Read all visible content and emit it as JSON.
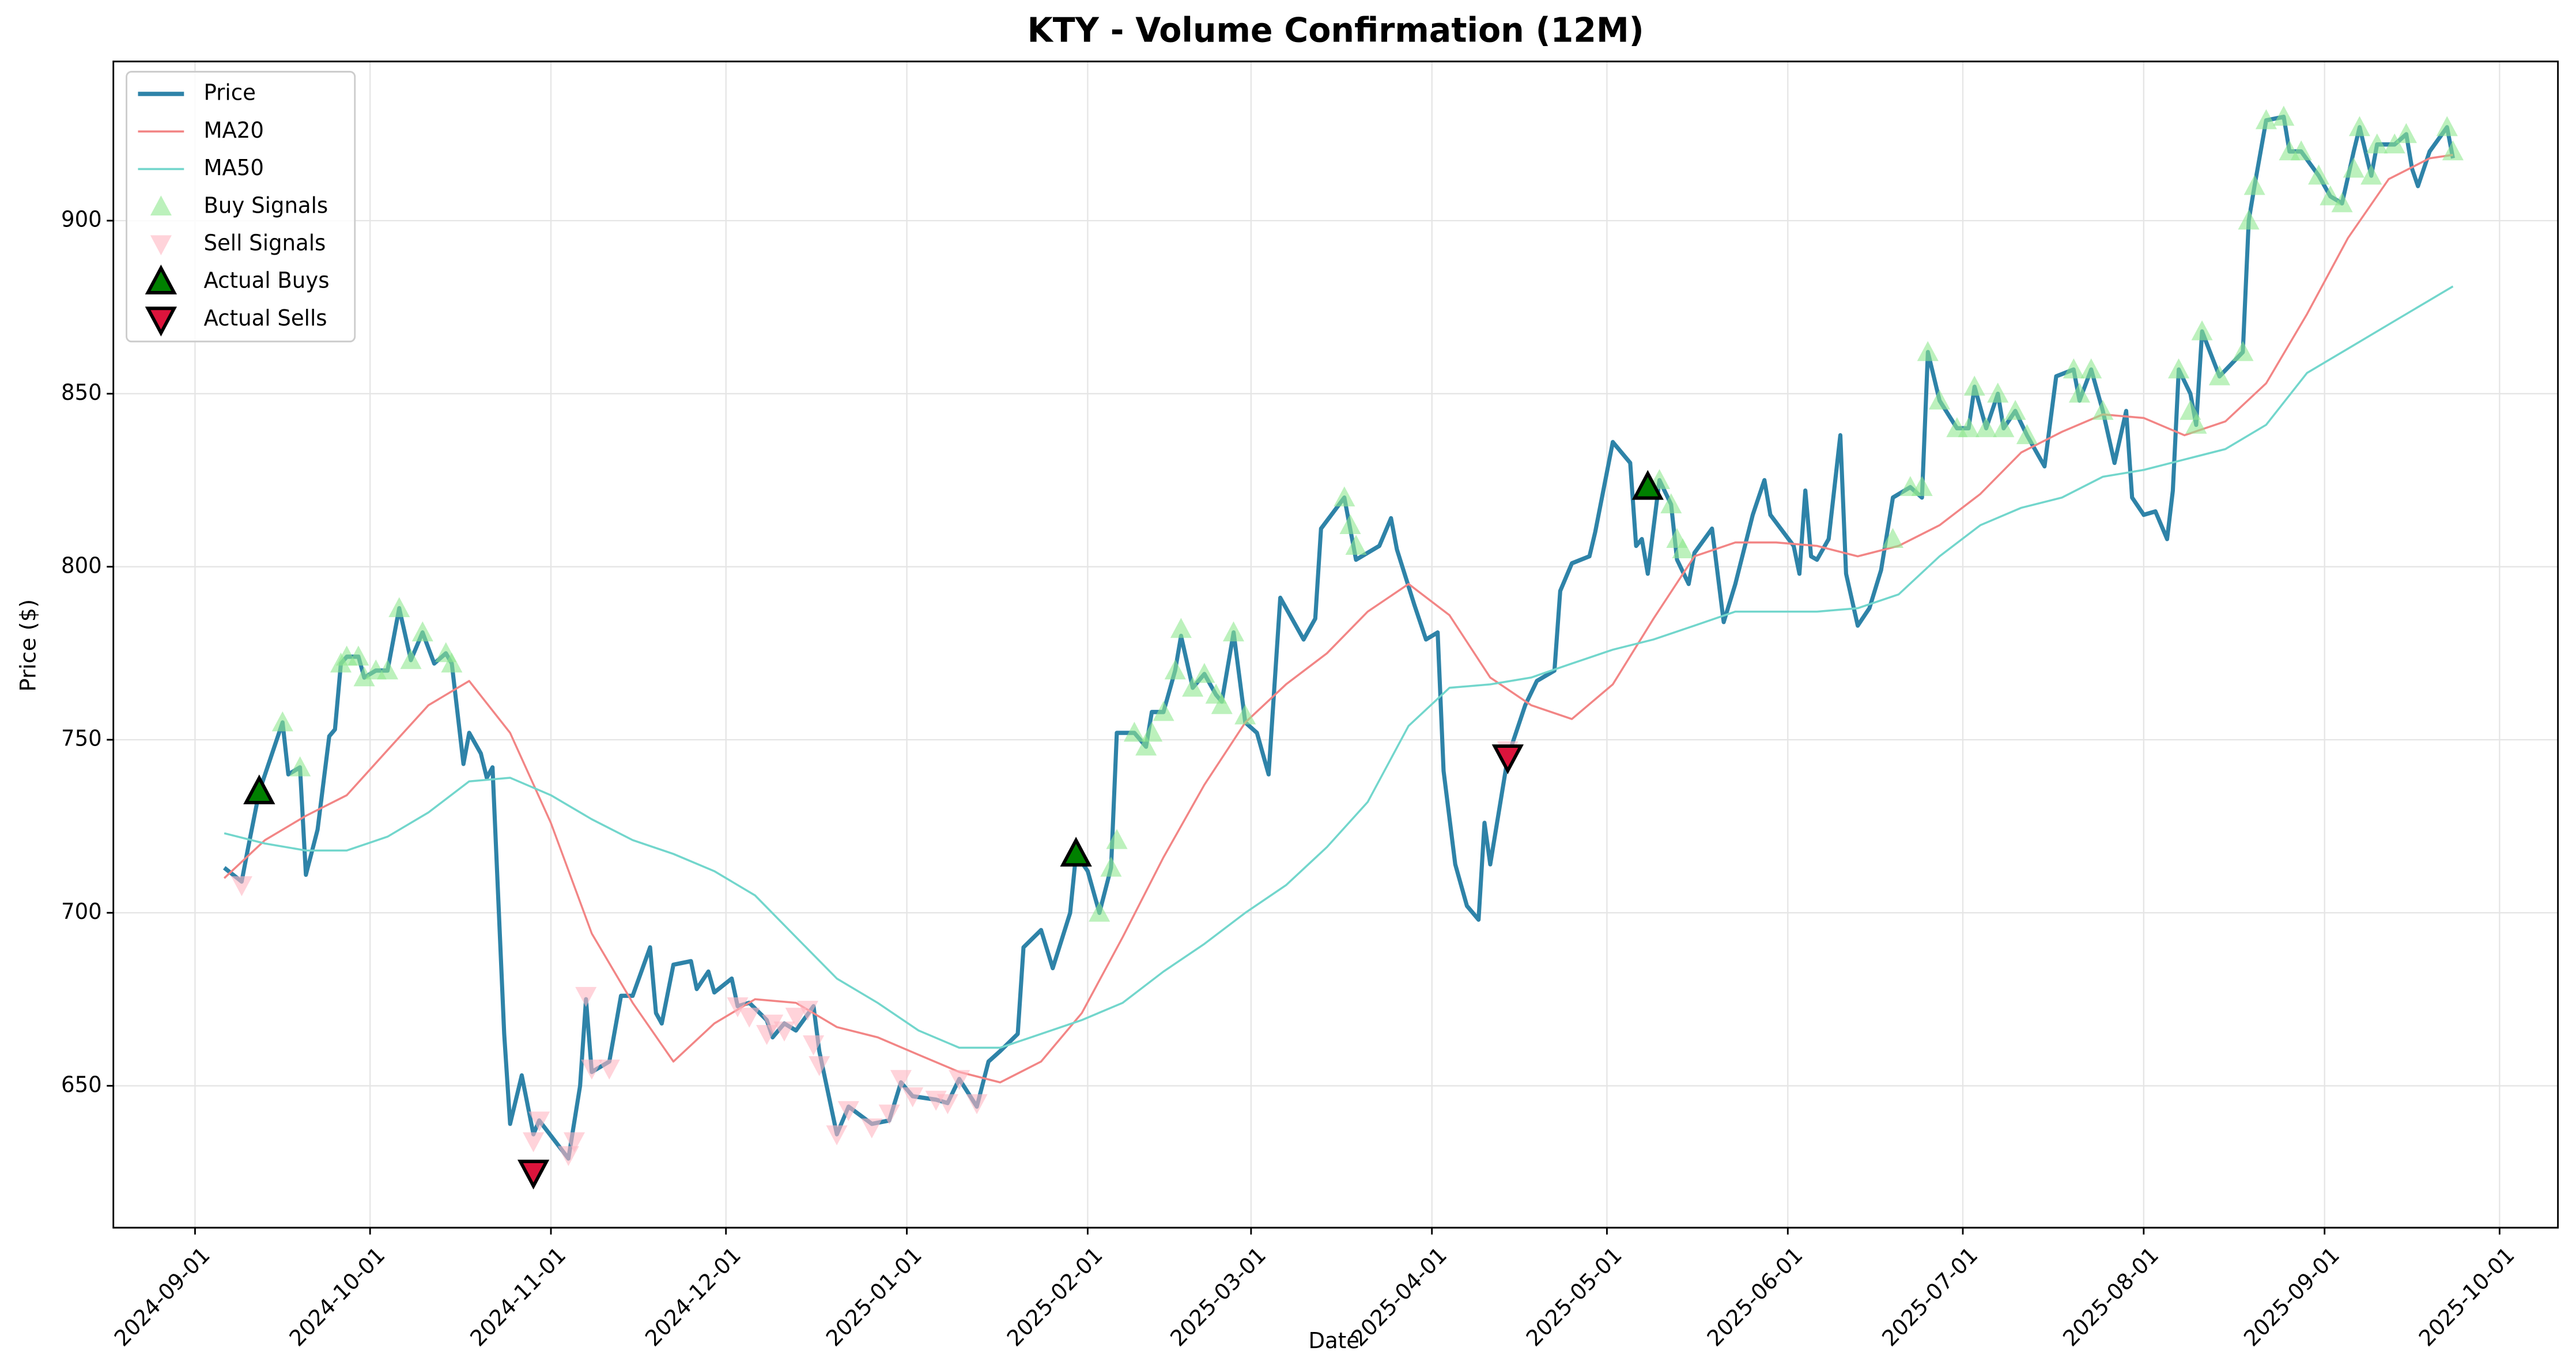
{
  "chart_data": {
    "type": "line",
    "title": "KTY - Volume Confirmation (12M)",
    "xlabel": "Date",
    "ylabel": "Price ($)",
    "xlim": [
      "2024-08-18",
      "2025-10-11"
    ],
    "ylim": [
      609,
      946
    ],
    "xticks": [
      "2024-09-01",
      "2024-10-01",
      "2024-11-01",
      "2024-12-01",
      "2025-01-01",
      "2025-02-01",
      "2025-03-01",
      "2025-04-01",
      "2025-05-01",
      "2025-06-01",
      "2025-07-01",
      "2025-08-01",
      "2025-09-01",
      "2025-10-01"
    ],
    "yticks": [
      650,
      700,
      750,
      800,
      850,
      900
    ],
    "grid": true,
    "legend": "upper left",
    "series": [
      {
        "name": "Price",
        "kind": "line",
        "color": "#2e83a8",
        "width": 2.5,
        "x": [
          "2024-09-06",
          "2024-09-09",
          "2024-09-10",
          "2024-09-12",
          "2024-09-16",
          "2024-09-17",
          "2024-09-19",
          "2024-09-20",
          "2024-09-22",
          "2024-09-24",
          "2024-09-25",
          "2024-09-26",
          "2024-09-27",
          "2024-09-29",
          "2024-09-30",
          "2024-10-02",
          "2024-10-04",
          "2024-10-06",
          "2024-10-08",
          "2024-10-10",
          "2024-10-12",
          "2024-10-14",
          "2024-10-15",
          "2024-10-17",
          "2024-10-18",
          "2024-10-20",
          "2024-10-21",
          "2024-10-22",
          "2024-10-24",
          "2024-10-25",
          "2024-10-27",
          "2024-10-29",
          "2024-10-30",
          "2024-11-04",
          "2024-11-06",
          "2024-11-07",
          "2024-11-08",
          "2024-11-11",
          "2024-11-13",
          "2024-11-15",
          "2024-11-18",
          "2024-11-19",
          "2024-11-20",
          "2024-11-22",
          "2024-11-25",
          "2024-11-26",
          "2024-11-28",
          "2024-11-29",
          "2024-12-02",
          "2024-12-03",
          "2024-12-05",
          "2024-12-08",
          "2024-12-09",
          "2024-12-11",
          "2024-12-13",
          "2024-12-16",
          "2024-12-17",
          "2024-12-20",
          "2024-12-22",
          "2024-12-26",
          "2024-12-29",
          "2024-12-31",
          "2025-01-02",
          "2025-01-06",
          "2025-01-08",
          "2025-01-10",
          "2025-01-13",
          "2025-01-15",
          "2025-01-17",
          "2025-01-20",
          "2025-01-21",
          "2025-01-24",
          "2025-01-26",
          "2025-01-29",
          "2025-01-30",
          "2025-02-01",
          "2025-02-03",
          "2025-02-05",
          "2025-02-06",
          "2025-02-09",
          "2025-02-11",
          "2025-02-12",
          "2025-02-14",
          "2025-02-16",
          "2025-02-17",
          "2025-02-19",
          "2025-02-21",
          "2025-02-23",
          "2025-02-24",
          "2025-02-26",
          "2025-02-28",
          "2025-03-02",
          "2025-03-04",
          "2025-03-06",
          "2025-03-10",
          "2025-03-12",
          "2025-03-13",
          "2025-03-17",
          "2025-03-19",
          "2025-03-23",
          "2025-03-25",
          "2025-03-26",
          "2025-03-29",
          "2025-03-31",
          "2025-04-02",
          "2025-04-03",
          "2025-04-05",
          "2025-04-07",
          "2025-04-09",
          "2025-04-10",
          "2025-04-11",
          "2025-04-14",
          "2025-04-17",
          "2025-04-19",
          "2025-04-22",
          "2025-04-23",
          "2025-04-25",
          "2025-04-28",
          "2025-04-29",
          "2025-05-02",
          "2025-05-05",
          "2025-05-06",
          "2025-05-07",
          "2025-05-08",
          "2025-05-10",
          "2025-05-12",
          "2025-05-13",
          "2025-05-15",
          "2025-05-16",
          "2025-05-19",
          "2025-05-21",
          "2025-05-23",
          "2025-05-26",
          "2025-05-28",
          "2025-05-29",
          "2025-06-02",
          "2025-06-03",
          "2025-06-04",
          "2025-06-05",
          "2025-06-06",
          "2025-06-08",
          "2025-06-10",
          "2025-06-11",
          "2025-06-13",
          "2025-06-15",
          "2025-06-17",
          "2025-06-19",
          "2025-06-22",
          "2025-06-24",
          "2025-06-25",
          "2025-06-27",
          "2025-06-30",
          "2025-07-02",
          "2025-07-03",
          "2025-07-05",
          "2025-07-07",
          "2025-07-08",
          "2025-07-10",
          "2025-07-12",
          "2025-07-14",
          "2025-07-15",
          "2025-07-17",
          "2025-07-20",
          "2025-07-21",
          "2025-07-23",
          "2025-07-25",
          "2025-07-27",
          "2025-07-29",
          "2025-07-30",
          "2025-08-01",
          "2025-08-03",
          "2025-08-05",
          "2025-08-06",
          "2025-08-07",
          "2025-08-09",
          "2025-08-10",
          "2025-08-11",
          "2025-08-14",
          "2025-08-18",
          "2025-08-19",
          "2025-08-20",
          "2025-08-22",
          "2025-08-25",
          "2025-08-26",
          "2025-08-28",
          "2025-08-31",
          "2025-09-02",
          "2025-09-04",
          "2025-09-06",
          "2025-09-07",
          "2025-09-09",
          "2025-09-10",
          "2025-09-13",
          "2025-09-15",
          "2025-09-16",
          "2025-09-17",
          "2025-09-19",
          "2025-09-22",
          "2025-09-23"
        ],
        "values": [
          713,
          709,
          718,
          735,
          755,
          740,
          742,
          711,
          724,
          751,
          753,
          772,
          774,
          774,
          768,
          770,
          770,
          788,
          773,
          781,
          772,
          775,
          772,
          743,
          752,
          746,
          739,
          742,
          665,
          639,
          653,
          636,
          640,
          629,
          650,
          675,
          654,
          657,
          676,
          676,
          690,
          671,
          668,
          685,
          686,
          678,
          683,
          677,
          681,
          673,
          674,
          669,
          664,
          668,
          666,
          673,
          660,
          636,
          644,
          639,
          640,
          651,
          647,
          646,
          645,
          652,
          644,
          657,
          660,
          665,
          690,
          695,
          684,
          700,
          717,
          712,
          700,
          713,
          752,
          752,
          748,
          758,
          758,
          770,
          780,
          765,
          769,
          763,
          761,
          781,
          755,
          752,
          740,
          791,
          779,
          785,
          811,
          820,
          802,
          806,
          814,
          805,
          789,
          779,
          781,
          741,
          714,
          702,
          698,
          726,
          714,
          745,
          760,
          767,
          770,
          793,
          801,
          803,
          810,
          836,
          830,
          806,
          808,
          798,
          825,
          818,
          802,
          795,
          804,
          811,
          784,
          795,
          815,
          825,
          815,
          806,
          798,
          822,
          803,
          802,
          808,
          838,
          798,
          783,
          788,
          799,
          820,
          823,
          820,
          862,
          848,
          840,
          840,
          852,
          840,
          850,
          840,
          845,
          838,
          832,
          829,
          855,
          857,
          848,
          857,
          845,
          830,
          845,
          820,
          815,
          816,
          808,
          822,
          857,
          850,
          841,
          868,
          855,
          862,
          900,
          910,
          929,
          930,
          920,
          920,
          913,
          907,
          905,
          920,
          927,
          913,
          922,
          922,
          925,
          915,
          910,
          920,
          927,
          918
        ]
      },
      {
        "name": "MA20",
        "kind": "line",
        "color": "#f28585",
        "width": 1.2,
        "x": [
          "2024-09-06",
          "2024-09-13",
          "2024-09-20",
          "2024-09-27",
          "2024-10-04",
          "2024-10-11",
          "2024-10-18",
          "2024-10-25",
          "2024-11-01",
          "2024-11-08",
          "2024-11-15",
          "2024-11-22",
          "2024-11-29",
          "2024-12-06",
          "2024-12-13",
          "2024-12-20",
          "2024-12-27",
          "2025-01-03",
          "2025-01-10",
          "2025-01-17",
          "2025-01-24",
          "2025-01-31",
          "2025-02-07",
          "2025-02-14",
          "2025-02-21",
          "2025-02-28",
          "2025-03-07",
          "2025-03-14",
          "2025-03-21",
          "2025-03-28",
          "2025-04-04",
          "2025-04-11",
          "2025-04-18",
          "2025-04-25",
          "2025-05-02",
          "2025-05-09",
          "2025-05-16",
          "2025-05-23",
          "2025-05-30",
          "2025-06-06",
          "2025-06-13",
          "2025-06-20",
          "2025-06-27",
          "2025-07-04",
          "2025-07-11",
          "2025-07-18",
          "2025-07-25",
          "2025-08-01",
          "2025-08-08",
          "2025-08-15",
          "2025-08-22",
          "2025-08-29",
          "2025-09-05",
          "2025-09-12",
          "2025-09-19",
          "2025-09-23"
        ],
        "values": [
          710,
          721,
          728,
          734,
          747,
          760,
          767,
          752,
          726,
          694,
          674,
          657,
          668,
          675,
          674,
          667,
          664,
          659,
          654,
          651,
          657,
          671,
          693,
          716,
          737,
          755,
          766,
          775,
          787,
          795,
          786,
          768,
          760,
          756,
          766,
          785,
          803,
          807,
          807,
          806,
          803,
          806,
          812,
          821,
          833,
          839,
          844,
          843,
          838,
          842,
          853,
          873,
          895,
          912,
          918,
          919
        ]
      },
      {
        "name": "MA50",
        "kind": "line",
        "color": "#72d6cc",
        "width": 1.2,
        "x": [
          "2024-09-06",
          "2024-09-13",
          "2024-09-20",
          "2024-09-27",
          "2024-10-04",
          "2024-10-11",
          "2024-10-18",
          "2024-10-25",
          "2024-11-01",
          "2024-11-08",
          "2024-11-15",
          "2024-11-22",
          "2024-11-29",
          "2024-12-06",
          "2024-12-13",
          "2024-12-20",
          "2024-12-27",
          "2025-01-03",
          "2025-01-10",
          "2025-01-17",
          "2025-01-24",
          "2025-01-31",
          "2025-02-07",
          "2025-02-14",
          "2025-02-21",
          "2025-02-28",
          "2025-03-07",
          "2025-03-14",
          "2025-03-21",
          "2025-03-28",
          "2025-04-04",
          "2025-04-11",
          "2025-04-18",
          "2025-04-25",
          "2025-05-02",
          "2025-05-09",
          "2025-05-16",
          "2025-05-23",
          "2025-05-30",
          "2025-06-06",
          "2025-06-13",
          "2025-06-20",
          "2025-06-27",
          "2025-07-04",
          "2025-07-11",
          "2025-07-18",
          "2025-07-25",
          "2025-08-01",
          "2025-08-08",
          "2025-08-15",
          "2025-08-22",
          "2025-08-29",
          "2025-09-05",
          "2025-09-12",
          "2025-09-19",
          "2025-09-23"
        ],
        "values": [
          723,
          720,
          718,
          718,
          722,
          729,
          738,
          739,
          734,
          727,
          721,
          717,
          712,
          705,
          693,
          681,
          674,
          666,
          661,
          661,
          665,
          669,
          674,
          683,
          691,
          700,
          708,
          719,
          732,
          754,
          765,
          766,
          768,
          772,
          776,
          779,
          783,
          787,
          787,
          787,
          788,
          792,
          803,
          812,
          817,
          820,
          826,
          828,
          831,
          834,
          841,
          856,
          863,
          870,
          877,
          881
        ]
      },
      {
        "name": "Buy Signals",
        "kind": "scatter",
        "marker": "triangle-up",
        "color": "#90e890",
        "opacity": 0.6,
        "x": [
          "2024-09-16",
          "2024-09-19",
          "2024-09-26",
          "2024-09-27",
          "2024-09-29",
          "2024-09-30",
          "2024-10-02",
          "2024-10-04",
          "2024-10-06",
          "2024-10-08",
          "2024-10-10",
          "2024-10-14",
          "2024-10-15",
          "2025-01-30",
          "2025-02-03",
          "2025-02-05",
          "2025-02-06",
          "2025-02-09",
          "2025-02-11",
          "2025-02-12",
          "2025-02-14",
          "2025-02-16",
          "2025-02-17",
          "2025-02-19",
          "2025-02-21",
          "2025-02-23",
          "2025-02-24",
          "2025-02-26",
          "2025-02-28",
          "2025-03-17",
          "2025-03-18",
          "2025-03-19",
          "2025-05-10",
          "2025-05-12",
          "2025-05-13",
          "2025-05-14",
          "2025-06-19",
          "2025-06-22",
          "2025-06-24",
          "2025-06-25",
          "2025-06-27",
          "2025-06-30",
          "2025-07-02",
          "2025-07-03",
          "2025-07-05",
          "2025-07-07",
          "2025-07-08",
          "2025-07-10",
          "2025-07-12",
          "2025-07-20",
          "2025-07-21",
          "2025-07-23",
          "2025-07-25",
          "2025-08-07",
          "2025-08-09",
          "2025-08-10",
          "2025-08-11",
          "2025-08-14",
          "2025-08-18",
          "2025-08-19",
          "2025-08-20",
          "2025-08-22",
          "2025-08-25",
          "2025-08-26",
          "2025-08-28",
          "2025-08-31",
          "2025-09-02",
          "2025-09-04",
          "2025-09-06",
          "2025-09-07",
          "2025-09-09",
          "2025-09-10",
          "2025-09-13",
          "2025-09-15",
          "2025-09-22",
          "2025-09-23"
        ],
        "values": [
          755,
          742,
          772,
          774,
          774,
          768,
          770,
          770,
          788,
          773,
          781,
          775,
          772,
          717,
          700,
          713,
          721,
          752,
          748,
          752,
          758,
          770,
          782,
          765,
          769,
          763,
          760,
          781,
          757,
          820,
          812,
          806,
          825,
          818,
          808,
          805,
          808,
          823,
          823,
          862,
          848,
          840,
          840,
          852,
          840,
          850,
          840,
          845,
          838,
          857,
          850,
          857,
          845,
          857,
          845,
          841,
          868,
          855,
          862,
          900,
          910,
          929,
          930,
          920,
          920,
          913,
          907,
          905,
          915,
          927,
          913,
          922,
          922,
          925,
          927,
          920
        ]
      },
      {
        "name": "Sell Signals",
        "kind": "scatter",
        "marker": "triangle-down",
        "color": "#ffb6c1",
        "opacity": 0.6,
        "x": [
          "2024-09-09",
          "2024-10-29",
          "2024-10-30",
          "2024-11-04",
          "2024-11-05",
          "2024-11-07",
          "2024-11-08",
          "2024-11-11",
          "2024-12-03",
          "2024-12-05",
          "2024-12-08",
          "2024-12-09",
          "2024-12-11",
          "2024-12-13",
          "2024-12-15",
          "2024-12-16",
          "2024-12-17",
          "2024-12-20",
          "2024-12-22",
          "2024-12-26",
          "2024-12-29",
          "2024-12-31",
          "2025-01-02",
          "2025-01-06",
          "2025-01-08",
          "2025-01-10",
          "2025-01-13",
          "2025-04-14"
        ],
        "values": [
          708,
          634,
          640,
          630,
          634,
          676,
          655,
          655,
          673,
          670,
          665,
          668,
          666,
          670,
          672,
          662,
          656,
          636,
          643,
          638,
          642,
          652,
          647,
          646,
          645,
          652,
          645,
          747
        ]
      },
      {
        "name": "Actual Buys",
        "kind": "scatter",
        "marker": "triangle-up",
        "color": "#008000",
        "edgecolor": "#000000",
        "opacity": 1,
        "x": [
          "2024-09-12",
          "2025-01-30",
          "2025-05-08"
        ],
        "values": [
          735,
          717,
          823
        ]
      },
      {
        "name": "Actual Sells",
        "kind": "scatter",
        "marker": "triangle-down",
        "color": "#dc143c",
        "edgecolor": "#000000",
        "opacity": 1,
        "x": [
          "2024-10-29",
          "2025-04-14"
        ],
        "values": [
          625,
          745
        ]
      }
    ]
  }
}
